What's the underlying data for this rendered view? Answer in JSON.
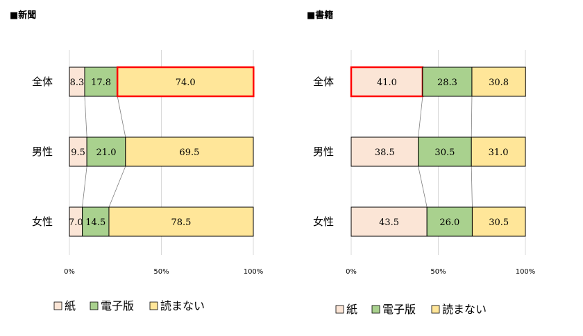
{
  "chart_data": [
    {
      "type": "bar",
      "orientation": "horizontal",
      "stacked": true,
      "title": "■新聞",
      "categories": [
        "全体",
        "男性",
        "女性"
      ],
      "series": [
        {
          "name": "紙",
          "values": [
            8.3,
            9.5,
            7.0
          ],
          "color": "#FBE5D6"
        },
        {
          "name": "電子版",
          "values": [
            17.8,
            21.0,
            14.5
          ],
          "color": "#A9D18E"
        },
        {
          "name": "読まない",
          "values": [
            74.0,
            69.5,
            78.5
          ],
          "color": "#FFE699"
        }
      ],
      "highlight": {
        "series": 2,
        "category": 0,
        "color": "#FF0000"
      },
      "xlim": [
        0,
        100
      ],
      "xticks": [
        "0%",
        "50%",
        "100%"
      ],
      "grid": true,
      "legend": "bottom"
    },
    {
      "type": "bar",
      "orientation": "horizontal",
      "stacked": true,
      "title": "■書籍",
      "categories": [
        "全体",
        "男性",
        "女性"
      ],
      "series": [
        {
          "name": "紙",
          "values": [
            41.0,
            38.5,
            43.5
          ],
          "color": "#FBE5D6"
        },
        {
          "name": "電子版",
          "values": [
            28.3,
            30.5,
            26.0
          ],
          "color": "#A9D18E"
        },
        {
          "name": "読まない",
          "values": [
            30.8,
            31.0,
            30.5
          ],
          "color": "#FFE699"
        }
      ],
      "highlight": {
        "series": 0,
        "category": 0,
        "color": "#FF0000"
      },
      "xlim": [
        0,
        100
      ],
      "xticks": [
        "0%",
        "50%",
        "100%"
      ],
      "grid": true,
      "legend": "bottom"
    }
  ]
}
